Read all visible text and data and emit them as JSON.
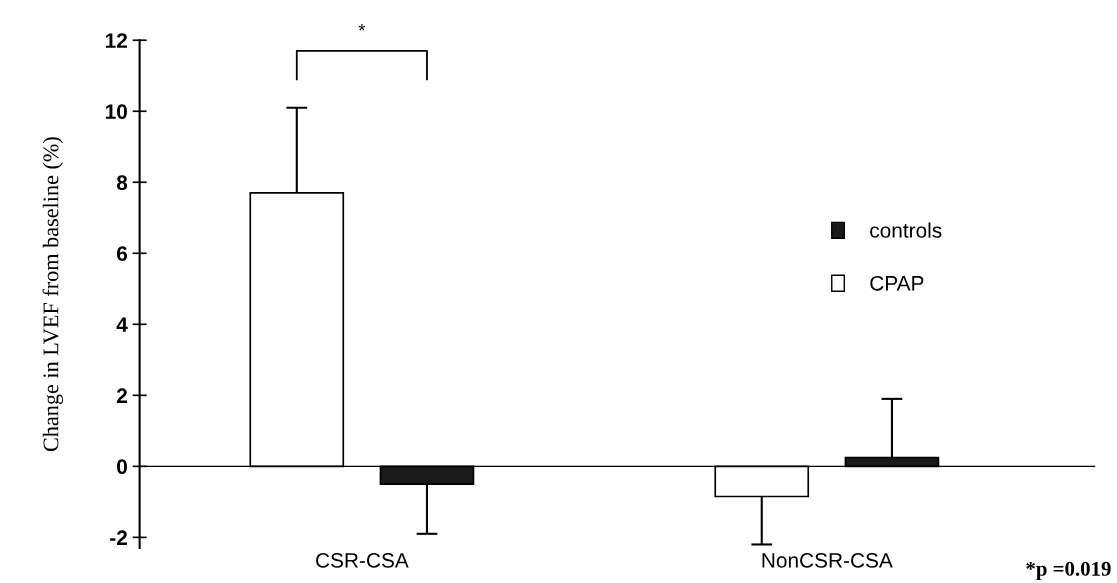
{
  "chart_data": {
    "type": "bar",
    "ylabel": "Change in LVEF from baseline (%)",
    "categories": [
      "CSR-CSA",
      "NonCSR-CSA"
    ],
    "series": [
      {
        "name": "CPAP",
        "color": "#ffffff",
        "values": [
          7.7,
          -0.85
        ],
        "errors": [
          [
            7.7,
            10.1
          ],
          [
            -2.2,
            -0.85
          ]
        ]
      },
      {
        "name": "controls",
        "color": "#1a1a1a",
        "values": [
          -0.5,
          0.25
        ],
        "errors": [
          [
            -1.9,
            -0.5
          ],
          [
            0.25,
            1.9
          ]
        ]
      }
    ],
    "ylim": [
      -2.3,
      12
    ],
    "yticks": [
      -2,
      0,
      2,
      4,
      6,
      8,
      10,
      12
    ],
    "legend": "right",
    "annotations": [
      "*",
      "*p =0.019"
    ]
  }
}
